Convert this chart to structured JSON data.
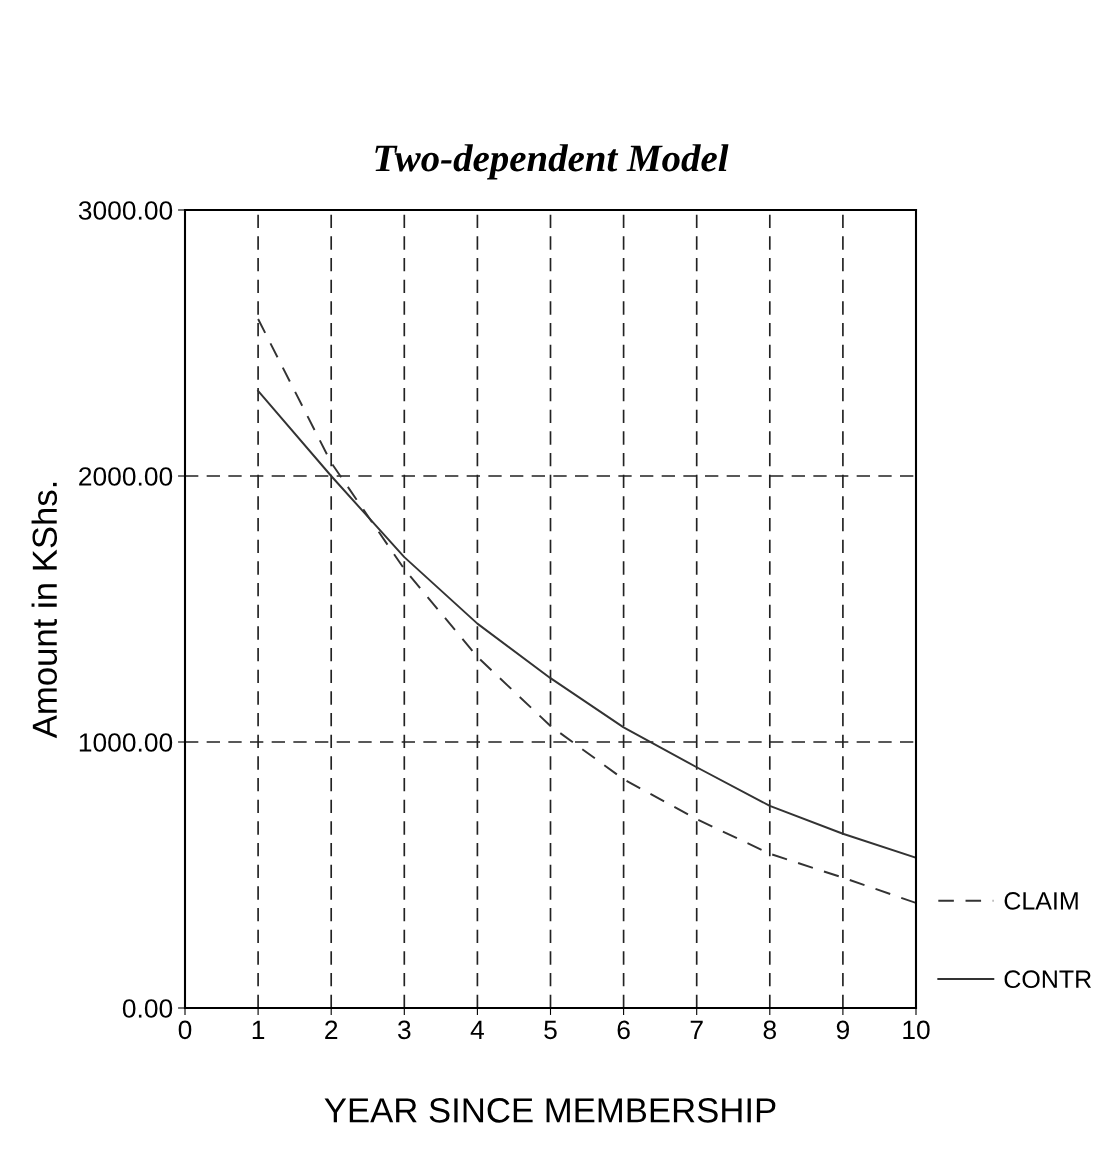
{
  "chart_data": {
    "type": "line",
    "title": "Two-dependent Model",
    "xlabel": "YEAR SINCE MEMBERSHIP",
    "ylabel": "Amount in KShs.",
    "x": [
      1,
      2,
      3,
      4,
      5,
      6,
      7,
      8,
      9,
      10
    ],
    "series": [
      {
        "name": "CLAIM",
        "color": "#333333",
        "line_style": "dashed",
        "values": [
          2590,
          2050,
          1650,
          1320,
          1060,
          860,
          710,
          580,
          490,
          395
        ]
      },
      {
        "name": "CONTR",
        "color": "#333333",
        "line_style": "solid",
        "values": [
          2320,
          2000,
          1695,
          1445,
          1240,
          1055,
          905,
          760,
          655,
          565
        ]
      }
    ],
    "xlim": [
      0,
      10
    ],
    "xticks": [
      0,
      1,
      2,
      3,
      4,
      5,
      6,
      7,
      8,
      9,
      10
    ],
    "ylim": [
      0,
      3000
    ],
    "yticks": [
      {
        "value": 0,
        "label": "0.00"
      },
      {
        "value": 1000,
        "label": "1000.00"
      },
      {
        "value": 2000,
        "label": "2000.00"
      },
      {
        "value": 3000,
        "label": "3000.00"
      }
    ],
    "grid": true,
    "legend": "right",
    "marker": "none"
  }
}
